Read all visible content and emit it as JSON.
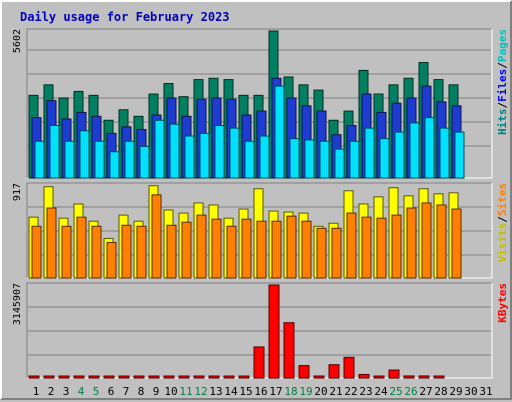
{
  "chart_data": {
    "type": "bar",
    "title": "Daily usage for February 2023",
    "days": [
      "1",
      "2",
      "3",
      "4",
      "5",
      "6",
      "7",
      "8",
      "9",
      "10",
      "11",
      "12",
      "13",
      "14",
      "15",
      "16",
      "17",
      "18",
      "19",
      "20",
      "21",
      "22",
      "23",
      "24",
      "25",
      "26",
      "27",
      "28",
      "29",
      "30",
      "31"
    ],
    "weekend_days": [
      4,
      5,
      11,
      12,
      18,
      19,
      25,
      26
    ],
    "panels": [
      {
        "name": "hits",
        "ymax_label": "5602",
        "ymax": 5602,
        "legend": [
          {
            "text": "Hits",
            "color": "#008080"
          },
          {
            "text": "Files",
            "color": "#0000ff"
          },
          {
            "text": "Pages",
            "color": "#00c0c0"
          }
        ],
        "series": [
          {
            "name": "Hits",
            "color": "#008060",
            "values": [
              3150,
              3550,
              3050,
              3300,
              3150,
              2200,
              2600,
              2350,
              3200,
              3600,
              3100,
              3750,
              3800,
              3750,
              3150,
              3150,
              5602,
              3850,
              3550,
              3350,
              2200,
              2550,
              4100,
              3200,
              3550,
              3800,
              4400,
              3750,
              3550,
              0,
              0
            ]
          },
          {
            "name": "Files",
            "color": "#1e3cd2",
            "values": [
              2300,
              2950,
              2250,
              2500,
              2350,
              1700,
              1950,
              1850,
              2400,
              3050,
              2350,
              3000,
              3050,
              3000,
              2400,
              2550,
              3800,
              3050,
              2750,
              2550,
              1650,
              2000,
              3200,
              2500,
              2850,
              3050,
              3500,
              2900,
              2750,
              0,
              0
            ]
          },
          {
            "name": "Pages",
            "color": "#00e0ff",
            "values": [
              1400,
              2000,
              1400,
              1800,
              1400,
              1000,
              1400,
              1200,
              2200,
              2050,
              1600,
              1700,
              2000,
              1900,
              1400,
              1600,
              3500,
              1500,
              1450,
              1400,
              1100,
              1400,
              1900,
              1500,
              1750,
              2100,
              2300,
              1900,
              1750,
              0,
              0
            ]
          }
        ]
      },
      {
        "name": "visits",
        "ymax_label": "917",
        "ymax": 917,
        "legend": [
          {
            "text": "Visits",
            "color": "#c0c000"
          },
          {
            "text": "Sites",
            "color": "#ff8000"
          }
        ],
        "series": [
          {
            "name": "Visits",
            "color": "#ffff00",
            "values": [
              600,
              900,
              590,
              730,
              560,
              390,
              620,
              560,
              910,
              670,
              640,
              740,
              720,
              590,
              680,
              880,
              660,
              650,
              640,
              510,
              540,
              860,
              730,
              800,
              890,
              810,
              880,
              830,
              840,
              0,
              0
            ]
          },
          {
            "name": "Sites",
            "color": "#ff8000",
            "values": [
              510,
              690,
              510,
              600,
              510,
              350,
              520,
              510,
              820,
              520,
              550,
              620,
              580,
              510,
              580,
              560,
              560,
              610,
              560,
              490,
              490,
              640,
              600,
              590,
              620,
              690,
              740,
              720,
              680,
              0,
              0
            ]
          }
        ]
      },
      {
        "name": "kbytes",
        "ymax_label": "3145907",
        "ymax": 3145907,
        "legend": [
          {
            "text": "KBytes",
            "color": "#ff0000"
          }
        ],
        "series": [
          {
            "name": "KBytes",
            "color": "#ff0000",
            "values": [
              30000,
              40000,
              30000,
              40000,
              40000,
              30000,
              30000,
              40000,
              40000,
              40000,
              40000,
              30000,
              40000,
              40000,
              40000,
              1050000,
              3145907,
              1870000,
              420000,
              20000,
              450000,
              700000,
              120000,
              60000,
              270000,
              70000,
              70000,
              60000,
              0,
              0,
              0
            ]
          }
        ]
      }
    ]
  }
}
